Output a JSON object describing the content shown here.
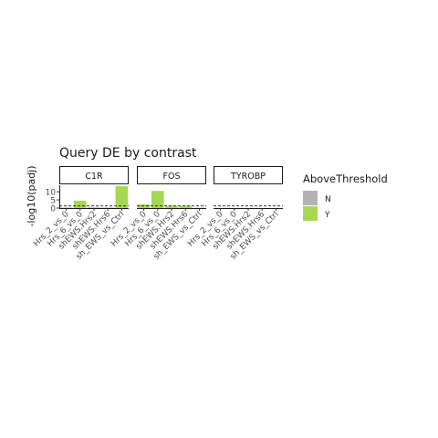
{
  "chart_data": {
    "type": "bar",
    "title": "Query DE by contrast",
    "ylabel": "-log10(padj)",
    "xlabel": "",
    "ylim": [
      0,
      14
    ],
    "yticks": [
      0,
      5,
      10
    ],
    "threshold": 1.3,
    "categories": [
      "Hrs_2_vs_0",
      "Hrs_6_vs_0",
      "shEWS.Hrs2",
      "shEWS.Hrs6",
      "sh_EWS_vs_Ctrl"
    ],
    "panels": [
      {
        "name": "C1R",
        "values": [
          0.3,
          4.5,
          0.4,
          0.3,
          13.5
        ],
        "above": [
          "N",
          "Y",
          "N",
          "N",
          "Y"
        ]
      },
      {
        "name": "FOS",
        "values": [
          2.2,
          10.5,
          1.5,
          1.4,
          0.2
        ],
        "above": [
          "Y",
          "Y",
          "Y",
          "Y",
          "N"
        ]
      },
      {
        "name": "TYROBP",
        "values": [
          0.1,
          0.1,
          0.1,
          0.1,
          0.1
        ],
        "above": [
          "N",
          "N",
          "N",
          "N",
          "N"
        ]
      }
    ],
    "legend": {
      "title": "AboveThreshold",
      "position": "right",
      "items": [
        {
          "label": "N",
          "color": "#b3b3b3"
        },
        {
          "label": "Y",
          "color": "#a6d854"
        }
      ]
    }
  }
}
